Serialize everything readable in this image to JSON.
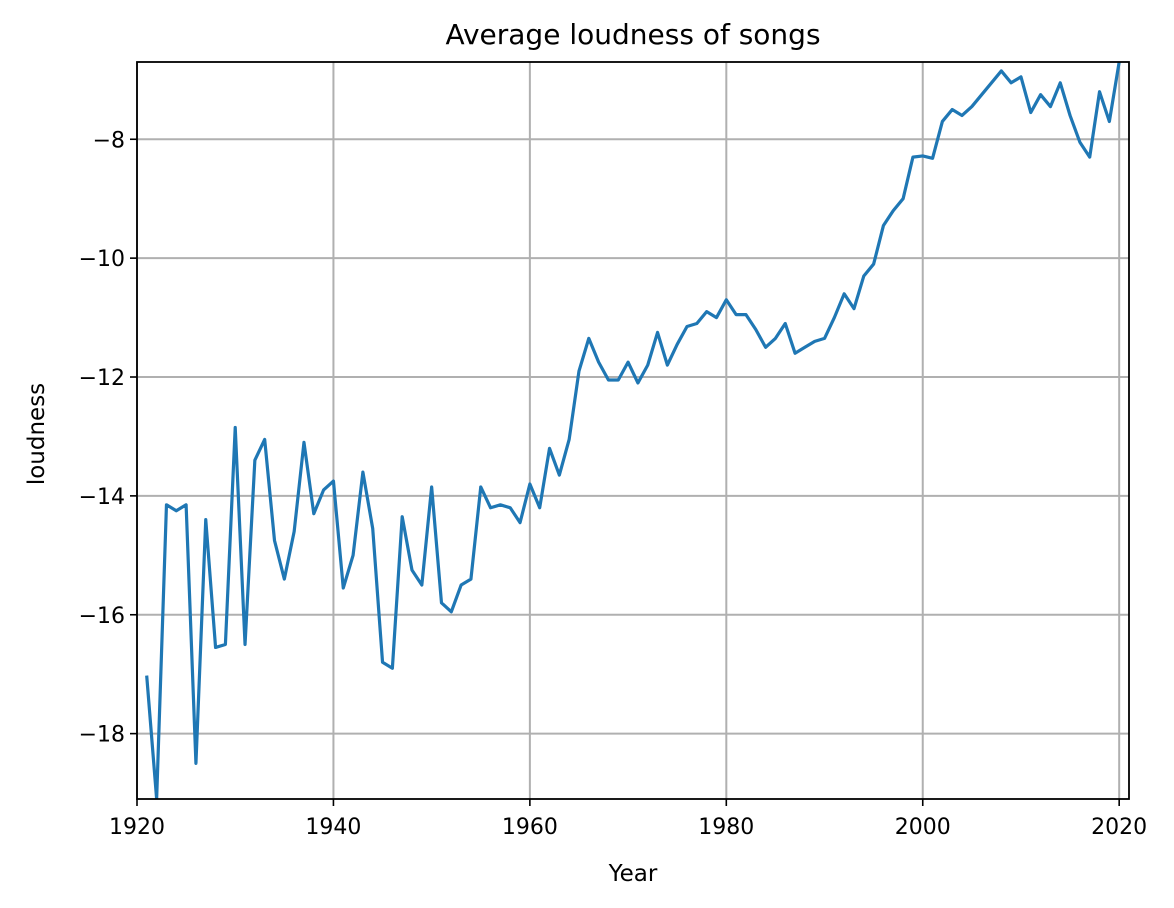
{
  "chart_data": {
    "type": "line",
    "title": "Average loudness of songs",
    "xlabel": "Year",
    "ylabel": "loudness",
    "xlim": [
      1920,
      2021
    ],
    "ylim": [
      -19.1,
      -6.7
    ],
    "grid": true,
    "x_ticks": [
      1920,
      1940,
      1960,
      1980,
      2000,
      2020
    ],
    "y_ticks": [
      -18,
      -16,
      -14,
      -12,
      -10,
      -8
    ],
    "line_color": "#1f77b4",
    "series": [
      {
        "x": [
          1921,
          1922,
          1923,
          1924,
          1925,
          1926,
          1927,
          1928,
          1929,
          1930,
          1931,
          1932,
          1933,
          1934,
          1935,
          1936,
          1937,
          1938,
          1939,
          1940,
          1941,
          1942,
          1943,
          1944,
          1945,
          1946,
          1947,
          1948,
          1949,
          1950,
          1951,
          1952,
          1953,
          1954,
          1955,
          1956,
          1957,
          1958,
          1959,
          1960,
          1961,
          1962,
          1963,
          1964,
          1965,
          1966,
          1967,
          1968,
          1969,
          1970,
          1971,
          1972,
          1973,
          1974,
          1975,
          1976,
          1977,
          1978,
          1979,
          1980,
          1981,
          1982,
          1983,
          1984,
          1985,
          1986,
          1987,
          1988,
          1989,
          1990,
          1991,
          1992,
          1993,
          1994,
          1995,
          1996,
          1997,
          1998,
          1999,
          2000,
          2001,
          2002,
          2003,
          2004,
          2005,
          2006,
          2007,
          2008,
          2009,
          2010,
          2011,
          2012,
          2013,
          2014,
          2015,
          2016,
          2017,
          2018,
          2019,
          2020
        ],
        "values": [
          -17.05,
          -19.1,
          -14.15,
          -14.25,
          -14.15,
          -18.5,
          -14.4,
          -16.55,
          -16.5,
          -12.85,
          -16.5,
          -13.4,
          -13.05,
          -14.75,
          -15.4,
          -14.6,
          -13.1,
          -14.3,
          -13.9,
          -13.75,
          -15.55,
          -15.0,
          -13.6,
          -14.55,
          -16.8,
          -16.9,
          -14.35,
          -15.25,
          -15.5,
          -13.85,
          -15.8,
          -15.95,
          -15.5,
          -15.4,
          -13.85,
          -14.2,
          -14.15,
          -14.2,
          -14.45,
          -13.8,
          -14.2,
          -13.2,
          -13.65,
          -13.05,
          -11.9,
          -11.35,
          -11.75,
          -12.05,
          -12.05,
          -11.75,
          -12.1,
          -11.8,
          -11.25,
          -11.8,
          -11.45,
          -11.15,
          -11.1,
          -10.9,
          -11.0,
          -10.7,
          -10.95,
          -10.95,
          -11.2,
          -11.5,
          -11.35,
          -11.1,
          -11.6,
          -11.5,
          -11.4,
          -11.35,
          -11.0,
          -10.6,
          -10.85,
          -10.3,
          -10.1,
          -9.45,
          -9.2,
          -9.0,
          -8.3,
          -8.28,
          -8.32,
          -7.7,
          -7.5,
          -7.6,
          -7.45,
          -7.25,
          -7.05,
          -6.85,
          -7.05,
          -6.95,
          -7.55,
          -7.25,
          -7.45,
          -7.05,
          -7.6,
          -8.05,
          -8.3,
          -7.2,
          -7.7,
          -6.7
        ]
      }
    ]
  }
}
